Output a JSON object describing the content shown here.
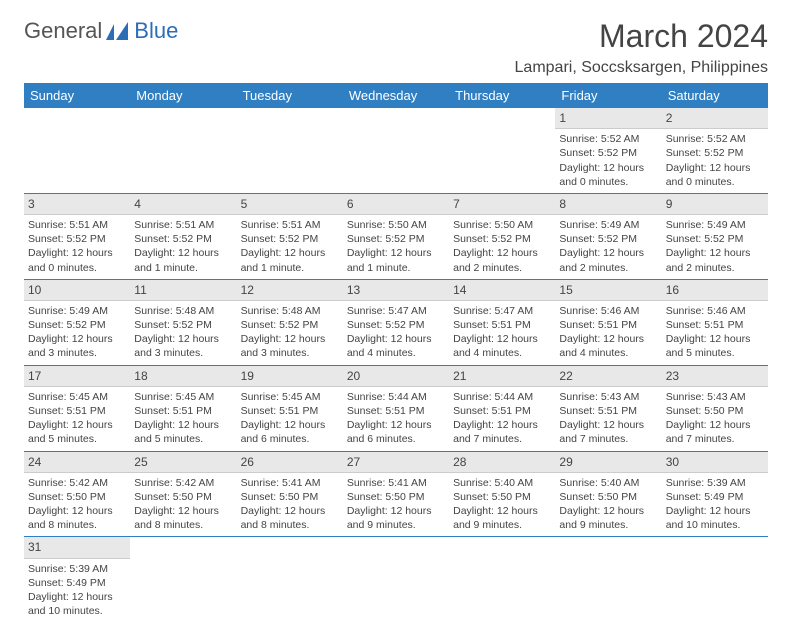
{
  "logo": {
    "part1": "General",
    "part2": "Blue"
  },
  "title": "March 2024",
  "location": "Lampari, Soccsksargen, Philippines",
  "colors": {
    "header_bg": "#2f7fc2",
    "header_text": "#ffffff",
    "daynum_bg": "#e8e8e8",
    "row_border": "#2f7fc2",
    "logo_blue": "#2a6eb8"
  },
  "day_headers": [
    "Sunday",
    "Monday",
    "Tuesday",
    "Wednesday",
    "Thursday",
    "Friday",
    "Saturday"
  ],
  "weeks": [
    [
      {
        "n": "",
        "l": []
      },
      {
        "n": "",
        "l": []
      },
      {
        "n": "",
        "l": []
      },
      {
        "n": "",
        "l": []
      },
      {
        "n": "",
        "l": []
      },
      {
        "n": "1",
        "l": [
          "Sunrise: 5:52 AM",
          "Sunset: 5:52 PM",
          "Daylight: 12 hours",
          "and 0 minutes."
        ]
      },
      {
        "n": "2",
        "l": [
          "Sunrise: 5:52 AM",
          "Sunset: 5:52 PM",
          "Daylight: 12 hours",
          "and 0 minutes."
        ]
      }
    ],
    [
      {
        "n": "3",
        "l": [
          "Sunrise: 5:51 AM",
          "Sunset: 5:52 PM",
          "Daylight: 12 hours",
          "and 0 minutes."
        ]
      },
      {
        "n": "4",
        "l": [
          "Sunrise: 5:51 AM",
          "Sunset: 5:52 PM",
          "Daylight: 12 hours",
          "and 1 minute."
        ]
      },
      {
        "n": "5",
        "l": [
          "Sunrise: 5:51 AM",
          "Sunset: 5:52 PM",
          "Daylight: 12 hours",
          "and 1 minute."
        ]
      },
      {
        "n": "6",
        "l": [
          "Sunrise: 5:50 AM",
          "Sunset: 5:52 PM",
          "Daylight: 12 hours",
          "and 1 minute."
        ]
      },
      {
        "n": "7",
        "l": [
          "Sunrise: 5:50 AM",
          "Sunset: 5:52 PM",
          "Daylight: 12 hours",
          "and 2 minutes."
        ]
      },
      {
        "n": "8",
        "l": [
          "Sunrise: 5:49 AM",
          "Sunset: 5:52 PM",
          "Daylight: 12 hours",
          "and 2 minutes."
        ]
      },
      {
        "n": "9",
        "l": [
          "Sunrise: 5:49 AM",
          "Sunset: 5:52 PM",
          "Daylight: 12 hours",
          "and 2 minutes."
        ]
      }
    ],
    [
      {
        "n": "10",
        "l": [
          "Sunrise: 5:49 AM",
          "Sunset: 5:52 PM",
          "Daylight: 12 hours",
          "and 3 minutes."
        ]
      },
      {
        "n": "11",
        "l": [
          "Sunrise: 5:48 AM",
          "Sunset: 5:52 PM",
          "Daylight: 12 hours",
          "and 3 minutes."
        ]
      },
      {
        "n": "12",
        "l": [
          "Sunrise: 5:48 AM",
          "Sunset: 5:52 PM",
          "Daylight: 12 hours",
          "and 3 minutes."
        ]
      },
      {
        "n": "13",
        "l": [
          "Sunrise: 5:47 AM",
          "Sunset: 5:52 PM",
          "Daylight: 12 hours",
          "and 4 minutes."
        ]
      },
      {
        "n": "14",
        "l": [
          "Sunrise: 5:47 AM",
          "Sunset: 5:51 PM",
          "Daylight: 12 hours",
          "and 4 minutes."
        ]
      },
      {
        "n": "15",
        "l": [
          "Sunrise: 5:46 AM",
          "Sunset: 5:51 PM",
          "Daylight: 12 hours",
          "and 4 minutes."
        ]
      },
      {
        "n": "16",
        "l": [
          "Sunrise: 5:46 AM",
          "Sunset: 5:51 PM",
          "Daylight: 12 hours",
          "and 5 minutes."
        ]
      }
    ],
    [
      {
        "n": "17",
        "l": [
          "Sunrise: 5:45 AM",
          "Sunset: 5:51 PM",
          "Daylight: 12 hours",
          "and 5 minutes."
        ]
      },
      {
        "n": "18",
        "l": [
          "Sunrise: 5:45 AM",
          "Sunset: 5:51 PM",
          "Daylight: 12 hours",
          "and 5 minutes."
        ]
      },
      {
        "n": "19",
        "l": [
          "Sunrise: 5:45 AM",
          "Sunset: 5:51 PM",
          "Daylight: 12 hours",
          "and 6 minutes."
        ]
      },
      {
        "n": "20",
        "l": [
          "Sunrise: 5:44 AM",
          "Sunset: 5:51 PM",
          "Daylight: 12 hours",
          "and 6 minutes."
        ]
      },
      {
        "n": "21",
        "l": [
          "Sunrise: 5:44 AM",
          "Sunset: 5:51 PM",
          "Daylight: 12 hours",
          "and 7 minutes."
        ]
      },
      {
        "n": "22",
        "l": [
          "Sunrise: 5:43 AM",
          "Sunset: 5:51 PM",
          "Daylight: 12 hours",
          "and 7 minutes."
        ]
      },
      {
        "n": "23",
        "l": [
          "Sunrise: 5:43 AM",
          "Sunset: 5:50 PM",
          "Daylight: 12 hours",
          "and 7 minutes."
        ]
      }
    ],
    [
      {
        "n": "24",
        "l": [
          "Sunrise: 5:42 AM",
          "Sunset: 5:50 PM",
          "Daylight: 12 hours",
          "and 8 minutes."
        ]
      },
      {
        "n": "25",
        "l": [
          "Sunrise: 5:42 AM",
          "Sunset: 5:50 PM",
          "Daylight: 12 hours",
          "and 8 minutes."
        ]
      },
      {
        "n": "26",
        "l": [
          "Sunrise: 5:41 AM",
          "Sunset: 5:50 PM",
          "Daylight: 12 hours",
          "and 8 minutes."
        ]
      },
      {
        "n": "27",
        "l": [
          "Sunrise: 5:41 AM",
          "Sunset: 5:50 PM",
          "Daylight: 12 hours",
          "and 9 minutes."
        ]
      },
      {
        "n": "28",
        "l": [
          "Sunrise: 5:40 AM",
          "Sunset: 5:50 PM",
          "Daylight: 12 hours",
          "and 9 minutes."
        ]
      },
      {
        "n": "29",
        "l": [
          "Sunrise: 5:40 AM",
          "Sunset: 5:50 PM",
          "Daylight: 12 hours",
          "and 9 minutes."
        ]
      },
      {
        "n": "30",
        "l": [
          "Sunrise: 5:39 AM",
          "Sunset: 5:49 PM",
          "Daylight: 12 hours",
          "and 10 minutes."
        ]
      }
    ],
    [
      {
        "n": "31",
        "l": [
          "Sunrise: 5:39 AM",
          "Sunset: 5:49 PM",
          "Daylight: 12 hours",
          "and 10 minutes."
        ]
      },
      {
        "n": "",
        "l": []
      },
      {
        "n": "",
        "l": []
      },
      {
        "n": "",
        "l": []
      },
      {
        "n": "",
        "l": []
      },
      {
        "n": "",
        "l": []
      },
      {
        "n": "",
        "l": []
      }
    ]
  ]
}
